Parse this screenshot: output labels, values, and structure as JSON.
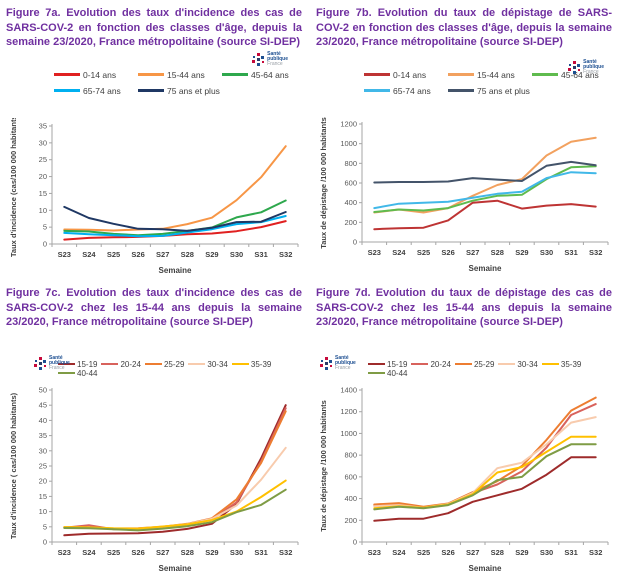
{
  "page": {
    "background": "#ffffff",
    "title_color": "#7030A0"
  },
  "logo": {
    "name": "Santé publique France",
    "lines": [
      "Santé",
      "publique",
      "France"
    ]
  },
  "panels": [
    {
      "id": "7a",
      "title": "Figure 7a. Evolution des taux d'incidence des cas de SARS-COV-2 en fonction des classes d'âge, depuis la semaine 23/2020, France métropolitaine (source SI-DEP)"
    },
    {
      "id": "7b",
      "title": "Figure 7b. Evolution du taux de dépistage de SARS-COV-2 en fonction des classes d'âge, depuis la semaine 23/2020, France métropolitaine (source SI-DEP)"
    },
    {
      "id": "7c",
      "title": "Figure 7c. Evolution des taux d'incidence des cas de SARS-COV-2 chez les 15-44 ans depuis la semaine 23/2020, France métropolitaine (source SI-DEP)"
    },
    {
      "id": "7d",
      "title": "Figure 7d. Evolution du taux de dépistage des cas de SARS-COV-2 chez les 15-44 ans depuis la semaine 23/2020, France métropolitaine (source SI-DEP)"
    }
  ],
  "chart_data": [
    {
      "type": "line",
      "title": "Figure 7a",
      "categories": [
        "S23",
        "S24",
        "S25",
        "S26",
        "S27",
        "S28",
        "S29",
        "S30",
        "S31",
        "S32"
      ],
      "xlabel": "Semaine",
      "ylabel": "Taux d'incidence (cas/100 000 habitants)",
      "ylim": [
        0,
        35
      ],
      "ytick_step": 5,
      "grid": false,
      "legend_position": "top",
      "series": [
        {
          "name": "0-14 ans",
          "color": "#E02020",
          "values": [
            1.3,
            1.8,
            2.0,
            2.1,
            2.4,
            2.9,
            3.1,
            3.8,
            5.0,
            6.8
          ]
        },
        {
          "name": "15-44 ans",
          "color": "#F79646",
          "values": [
            4.3,
            4.2,
            4.0,
            4.3,
            4.5,
            5.9,
            7.8,
            13.0,
            19.8,
            29.0
          ]
        },
        {
          "name": "45-64 ans",
          "color": "#2EA84D",
          "values": [
            3.9,
            3.7,
            3.0,
            2.6,
            3.0,
            3.9,
            4.9,
            7.9,
            9.4,
            12.9
          ]
        },
        {
          "name": "65-74 ans",
          "color": "#00B0F0",
          "values": [
            3.3,
            2.9,
            2.6,
            2.3,
            2.4,
            3.4,
            4.4,
            5.9,
            6.5,
            8.3
          ]
        },
        {
          "name": "75 ans et plus",
          "color": "#1F3864",
          "values": [
            11.0,
            7.7,
            6.0,
            4.5,
            4.4,
            3.9,
            4.8,
            6.5,
            6.6,
            9.5
          ]
        }
      ]
    },
    {
      "type": "line",
      "title": "Figure 7b",
      "categories": [
        "S23",
        "S24",
        "S25",
        "S26",
        "S27",
        "S28",
        "S29",
        "S30",
        "S31",
        "S32"
      ],
      "xlabel": "Semaine",
      "ylabel": "Taux de dépistage /100 000 habitants",
      "ylim": [
        0,
        1200
      ],
      "ytick_step": 200,
      "grid": false,
      "legend_position": "top",
      "series": [
        {
          "name": "0-14 ans",
          "color": "#BE3434",
          "values": [
            130,
            140,
            145,
            220,
            400,
            420,
            340,
            370,
            385,
            360
          ]
        },
        {
          "name": "15-44 ans",
          "color": "#F2A15F",
          "values": [
            300,
            330,
            300,
            345,
            470,
            580,
            640,
            880,
            1020,
            1060
          ]
        },
        {
          "name": "45-64 ans",
          "color": "#5FBB4E",
          "values": [
            305,
            330,
            320,
            345,
            420,
            470,
            480,
            640,
            760,
            770
          ]
        },
        {
          "name": "65-74 ans",
          "color": "#41B8E8",
          "values": [
            345,
            390,
            400,
            410,
            450,
            490,
            510,
            650,
            710,
            700
          ]
        },
        {
          "name": "75 ans et plus",
          "color": "#44546A",
          "values": [
            605,
            610,
            610,
            615,
            650,
            635,
            620,
            775,
            815,
            780
          ]
        }
      ]
    },
    {
      "type": "line",
      "title": "Figure 7c",
      "categories": [
        "S23",
        "S24",
        "S25",
        "S26",
        "S27",
        "S28",
        "S29",
        "S30",
        "S31",
        "S32"
      ],
      "xlabel": "Semaine",
      "ylabel": "Taux d'incidence ( cas/100 000 habitants)",
      "ylim": [
        0,
        50
      ],
      "ytick_step": 5,
      "grid": false,
      "legend_position": "top",
      "series": [
        {
          "name": "15-19",
          "color": "#9E2B2B",
          "values": [
            2.2,
            2.7,
            2.8,
            2.9,
            3.4,
            4.3,
            6.0,
            12.5,
            27.5,
            45.0
          ]
        },
        {
          "name": "20-24",
          "color": "#D8625C",
          "values": [
            4.7,
            5.5,
            4.2,
            4.3,
            4.8,
            5.8,
            7.4,
            13.0,
            26.5,
            44.0
          ]
        },
        {
          "name": "25-29",
          "color": "#ED7D31",
          "values": [
            4.9,
            4.8,
            4.4,
            4.5,
            5.0,
            6.0,
            7.8,
            14.0,
            26.0,
            43.0
          ]
        },
        {
          "name": "30-34",
          "color": "#F8CBAD",
          "values": [
            4.8,
            4.7,
            4.3,
            4.4,
            5.0,
            5.9,
            7.6,
            12.0,
            20.5,
            31.0
          ]
        },
        {
          "name": "35-39",
          "color": "#FFC000",
          "values": [
            4.9,
            4.8,
            4.5,
            4.4,
            5.1,
            5.8,
            7.2,
            10.0,
            14.8,
            20.2
          ]
        },
        {
          "name": "40-44",
          "color": "#7F9C45",
          "values": [
            4.6,
            4.5,
            4.2,
            3.8,
            4.4,
            5.2,
            6.5,
            9.8,
            12.2,
            17.2
          ]
        }
      ]
    },
    {
      "type": "line",
      "title": "Figure 7d",
      "categories": [
        "S23",
        "S24",
        "S25",
        "S26",
        "S27",
        "S28",
        "S29",
        "S30",
        "S31",
        "S32"
      ],
      "xlabel": "Semaine",
      "ylabel": "Taux de dépistage /100 000 habitants",
      "ylim": [
        0,
        1400
      ],
      "ytick_step": 200,
      "grid": false,
      "legend_position": "top",
      "series": [
        {
          "name": "15-19",
          "color": "#9E2B2B",
          "values": [
            195,
            215,
            215,
            265,
            370,
            430,
            490,
            620,
            780,
            780
          ]
        },
        {
          "name": "20-24",
          "color": "#D8625C",
          "values": [
            340,
            350,
            320,
            350,
            450,
            530,
            650,
            870,
            1170,
            1270
          ]
        },
        {
          "name": "25-29",
          "color": "#ED7D31",
          "values": [
            345,
            358,
            325,
            355,
            460,
            560,
            700,
            940,
            1210,
            1330
          ]
        },
        {
          "name": "30-34",
          "color": "#F8CBAD",
          "values": [
            330,
            340,
            315,
            350,
            450,
            680,
            730,
            900,
            1100,
            1150
          ]
        },
        {
          "name": "35-39",
          "color": "#FFC000",
          "values": [
            310,
            330,
            315,
            345,
            440,
            640,
            690,
            830,
            970,
            970
          ]
        },
        {
          "name": "40-44",
          "color": "#7F9C45",
          "values": [
            300,
            325,
            310,
            340,
            430,
            570,
            600,
            790,
            900,
            900
          ]
        }
      ]
    }
  ]
}
